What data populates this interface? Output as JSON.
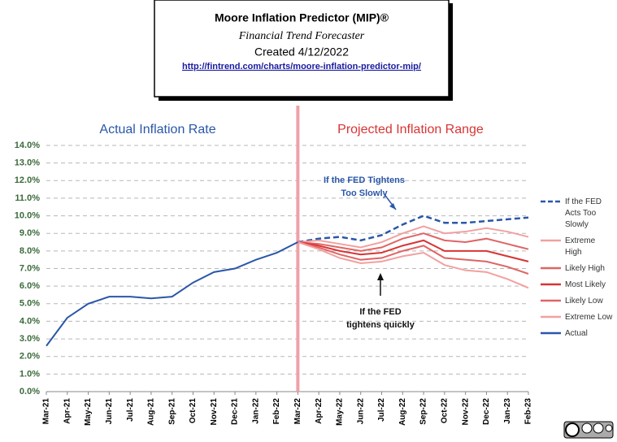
{
  "chart_data": {
    "type": "line",
    "title": "Moore Inflation Predictor (MIP)®",
    "subtitle": "Financial Trend Forecaster",
    "created": "Created  4/12/2022",
    "url": "http://fintrend.com/charts/moore-inflation-predictor-mip/",
    "left_label": "Actual Inflation Rate",
    "right_label": "Projected Inflation Range",
    "annotations": [
      {
        "lines": [
          "If the FED Tightens",
          "Too Slowly"
        ],
        "color": "#2a57a8"
      },
      {
        "lines": [
          "If the FED",
          "tightens quickly"
        ],
        "color": "#111111"
      }
    ],
    "categories": [
      "Mar-21",
      "Apr-21",
      "May-21",
      "Jun-21",
      "Jul-21",
      "Aug-21",
      "Sep-21",
      "Oct-21",
      "Nov-21",
      "Dec-21",
      "Jan-22",
      "Feb-22",
      "Mar-22",
      "Apr-22",
      "May-22",
      "Jun-22",
      "Jul-22",
      "Aug-22",
      "Sep-22",
      "Oct-22",
      "Nov-22",
      "Dec-22",
      "Jan-23",
      "Feb-23"
    ],
    "ylim": [
      0,
      14
    ],
    "yticks": [
      {
        "value": 0,
        "label": "0.0%"
      },
      {
        "value": 1,
        "label": "1.0%"
      },
      {
        "value": 2,
        "label": "2.0%"
      },
      {
        "value": 3,
        "label": "3.0%"
      },
      {
        "value": 4,
        "label": "4.0%"
      },
      {
        "value": 5,
        "label": "5.0%"
      },
      {
        "value": 6,
        "label": "6.0%"
      },
      {
        "value": 7,
        "label": "7.0%"
      },
      {
        "value": 8,
        "label": "8.0%"
      },
      {
        "value": 9,
        "label": "9.0%"
      },
      {
        "value": 10,
        "label": "10.0%"
      },
      {
        "value": 11,
        "label": "11.0%"
      },
      {
        "value": 12,
        "label": "12.0%"
      },
      {
        "value": 13,
        "label": "13.0%"
      },
      {
        "value": 14,
        "label": "14.0%"
      }
    ],
    "grid": true,
    "divider": "Mar-22",
    "series": [
      {
        "name": "If the FED Acts Too Slowly",
        "color": "#2a57a8",
        "dashed": true,
        "values": [
          null,
          null,
          null,
          null,
          null,
          null,
          null,
          null,
          null,
          null,
          null,
          null,
          8.5,
          8.7,
          8.8,
          8.6,
          8.9,
          9.5,
          10.0,
          9.6,
          9.6,
          9.7,
          9.8,
          9.9
        ]
      },
      {
        "name": "Extreme High",
        "color": "#f2a0a0",
        "values": [
          null,
          null,
          null,
          null,
          null,
          null,
          null,
          null,
          null,
          null,
          null,
          null,
          8.5,
          8.6,
          8.4,
          8.2,
          8.5,
          9.0,
          9.4,
          9.0,
          9.1,
          9.3,
          9.1,
          8.8
        ]
      },
      {
        "name": "Likely High",
        "color": "#e06464",
        "values": [
          null,
          null,
          null,
          null,
          null,
          null,
          null,
          null,
          null,
          null,
          null,
          null,
          8.5,
          8.4,
          8.2,
          8.0,
          8.2,
          8.7,
          9.0,
          8.6,
          8.5,
          8.7,
          8.4,
          8.1
        ]
      },
      {
        "name": "Most Likely",
        "color": "#d83434",
        "values": [
          null,
          null,
          null,
          null,
          null,
          null,
          null,
          null,
          null,
          null,
          null,
          null,
          8.5,
          8.3,
          8.0,
          7.8,
          7.9,
          8.3,
          8.6,
          8.0,
          8.0,
          8.0,
          7.7,
          7.4
        ]
      },
      {
        "name": "Likely Low",
        "color": "#e06464",
        "values": [
          null,
          null,
          null,
          null,
          null,
          null,
          null,
          null,
          null,
          null,
          null,
          null,
          8.5,
          8.2,
          7.8,
          7.5,
          7.6,
          8.0,
          8.3,
          7.6,
          7.5,
          7.4,
          7.1,
          6.7
        ]
      },
      {
        "name": "Extreme Low",
        "color": "#f2a0a0",
        "values": [
          null,
          null,
          null,
          null,
          null,
          null,
          null,
          null,
          null,
          null,
          null,
          null,
          8.5,
          8.1,
          7.6,
          7.3,
          7.4,
          7.7,
          7.9,
          7.2,
          6.9,
          6.8,
          6.4,
          5.9
        ]
      },
      {
        "name": "Actual",
        "color": "#2a57a8",
        "values": [
          2.6,
          4.2,
          5.0,
          5.4,
          5.4,
          5.3,
          5.4,
          6.2,
          6.8,
          7.0,
          7.5,
          7.9,
          8.5,
          null,
          null,
          null,
          null,
          null,
          null,
          null,
          null,
          null,
          null,
          null
        ]
      }
    ]
  }
}
